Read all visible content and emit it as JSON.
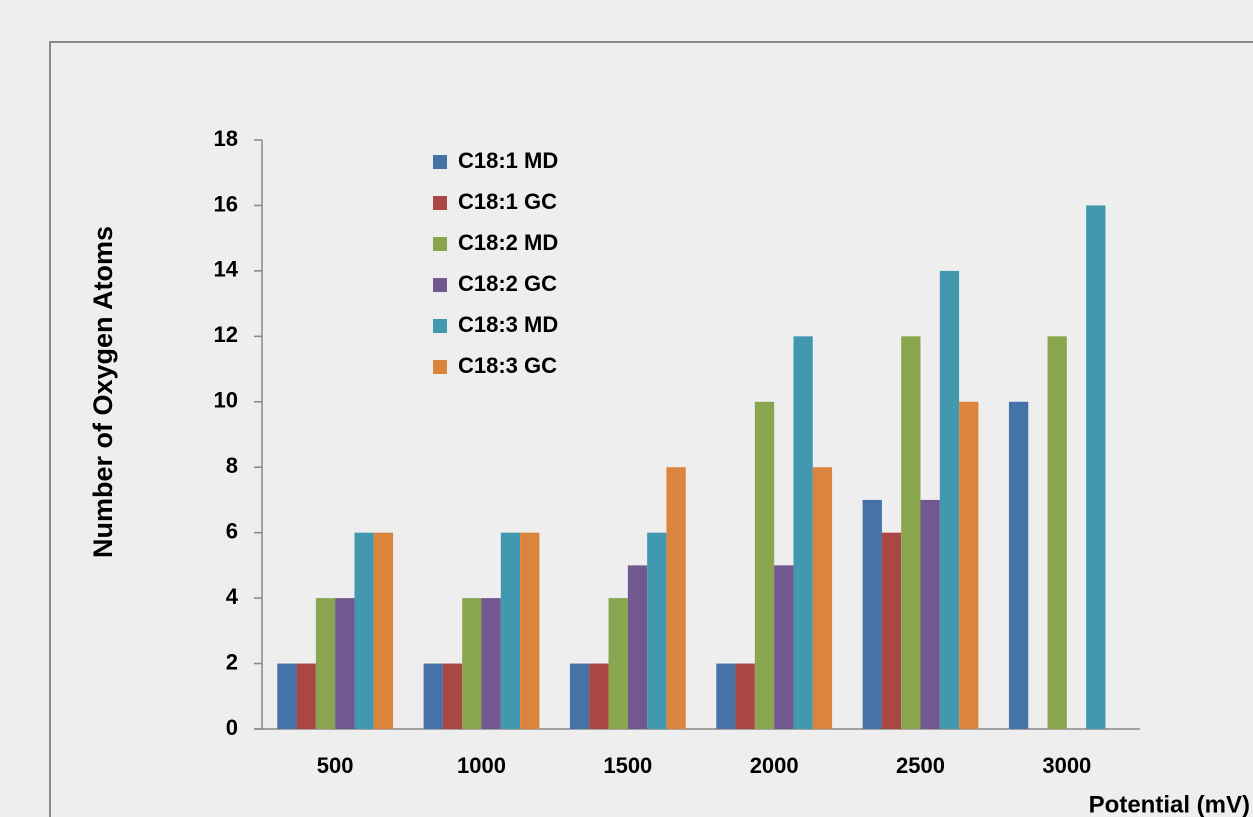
{
  "chart_data": {
    "type": "bar",
    "x_label": "Potential (mV)",
    "y_label": "Number of Oxygen Atoms",
    "categories": [
      "500",
      "1000",
      "1500",
      "2000",
      "2500",
      "3000"
    ],
    "series": [
      {
        "name": "C18:1 MD",
        "color": "#4572a7",
        "values": [
          2,
          2,
          2,
          2,
          7,
          10
        ]
      },
      {
        "name": "C18:1 GC",
        "color": "#aa4643",
        "values": [
          2,
          2,
          2,
          2,
          6,
          null
        ]
      },
      {
        "name": "C18:2 MD",
        "color": "#89a54e",
        "values": [
          4,
          4,
          4,
          10,
          12,
          12
        ]
      },
      {
        "name": "C18:2 GC",
        "color": "#71588f",
        "values": [
          4,
          4,
          5,
          5,
          7,
          null
        ]
      },
      {
        "name": "C18:3 MD",
        "color": "#4198af",
        "values": [
          6,
          6,
          6,
          12,
          14,
          16
        ]
      },
      {
        "name": "C18:3 GC",
        "color": "#db843d",
        "values": [
          6,
          6,
          8,
          8,
          10,
          null
        ]
      }
    ],
    "ylim": [
      0,
      18
    ],
    "yticks": [
      0,
      2,
      4,
      6,
      8,
      10,
      12,
      14,
      16,
      18
    ],
    "grid": false,
    "legend": "top-left"
  }
}
